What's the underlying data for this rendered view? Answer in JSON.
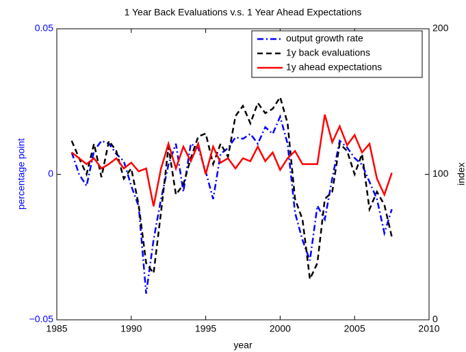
{
  "chart_data": {
    "type": "line",
    "title": "1 Year Back Evaluations v.s. 1 Year Ahead Expectations",
    "xlabel": "year",
    "ylabel": "percentage point",
    "y2label": "index",
    "ycolor": "#0000ff",
    "x": [
      1986,
      1986.5,
      1987,
      1987.5,
      1988,
      1988.5,
      1989,
      1989.5,
      1990,
      1990.5,
      1991,
      1991.5,
      1992,
      1992.5,
      1993,
      1993.5,
      1994,
      1994.5,
      1995,
      1995.5,
      1996,
      1996.5,
      1997,
      1997.5,
      1998,
      1998.5,
      1999,
      1999.5,
      2000,
      2000.5,
      2001,
      2001.5,
      2002,
      2002.5,
      2003,
      2003.5,
      2004,
      2004.5,
      2005,
      2005.5,
      2006,
      2006.5,
      2007,
      2007.5
    ],
    "series": [
      {
        "name": "output growth rate",
        "color": "#0000ff",
        "style": "dashdot",
        "values": [
          0.0075,
          0,
          -0.004,
          0.008,
          0.0115,
          0.0105,
          0.007,
          0.0045,
          -0.004,
          -0.011,
          -0.041,
          -0.0225,
          -0.0085,
          0.0033,
          0.0105,
          -0.006,
          0.0105,
          0.009,
          0.001,
          -0.0085,
          0.007,
          0.009,
          0.0127,
          0.0122,
          0.0139,
          0.0105,
          0.0162,
          0.0139,
          0.0198,
          0.0105,
          -0.0132,
          -0.0226,
          -0.0296,
          -0.0108,
          -0.0155,
          -0.0014,
          0.0115,
          0.0092,
          0.0056,
          0.0033,
          -0.0026,
          -0.0085,
          -0.0202,
          -0.012
        ]
      },
      {
        "name": "1y back evaluations",
        "color": "#000000",
        "style": "dashed",
        "axis": "y2",
        "values": [
          123,
          111,
          100,
          121,
          98,
          123,
          116,
          97,
          104,
          79,
          39,
          32,
          74,
          119,
          86,
          93,
          111,
          126,
          128,
          107,
          121,
          112,
          140,
          147,
          135,
          149,
          142,
          145,
          153,
          135,
          83,
          69,
          28,
          39,
          83,
          88,
          121,
          116,
          100,
          114,
          76,
          88,
          79,
          57
        ]
      },
      {
        "name": "1y ahead expectations",
        "color": "#ff0000",
        "style": "solid",
        "axis": "y2",
        "values": [
          115,
          111,
          107,
          111,
          104,
          107,
          111,
          104,
          108,
          102,
          104,
          78,
          104,
          121,
          104,
          119,
          109,
          121,
          100,
          119,
          108,
          111,
          104,
          111,
          109,
          119,
          109,
          115,
          103,
          111,
          116,
          107,
          107,
          107,
          141,
          122,
          133,
          120,
          127,
          115,
          121,
          97,
          86,
          101
        ]
      }
    ],
    "xlim": [
      1985,
      2010
    ],
    "xticks": [
      1985,
      1990,
      1995,
      2000,
      2005,
      2010
    ],
    "ylim": [
      -0.05,
      0.05
    ],
    "yticks": [
      {
        "value": -0.05,
        "label": "−0.05"
      },
      0,
      0.05
    ],
    "y2lim": [
      0,
      200
    ],
    "y2ticks": [
      0,
      100,
      200
    ],
    "legend": "upper right"
  }
}
